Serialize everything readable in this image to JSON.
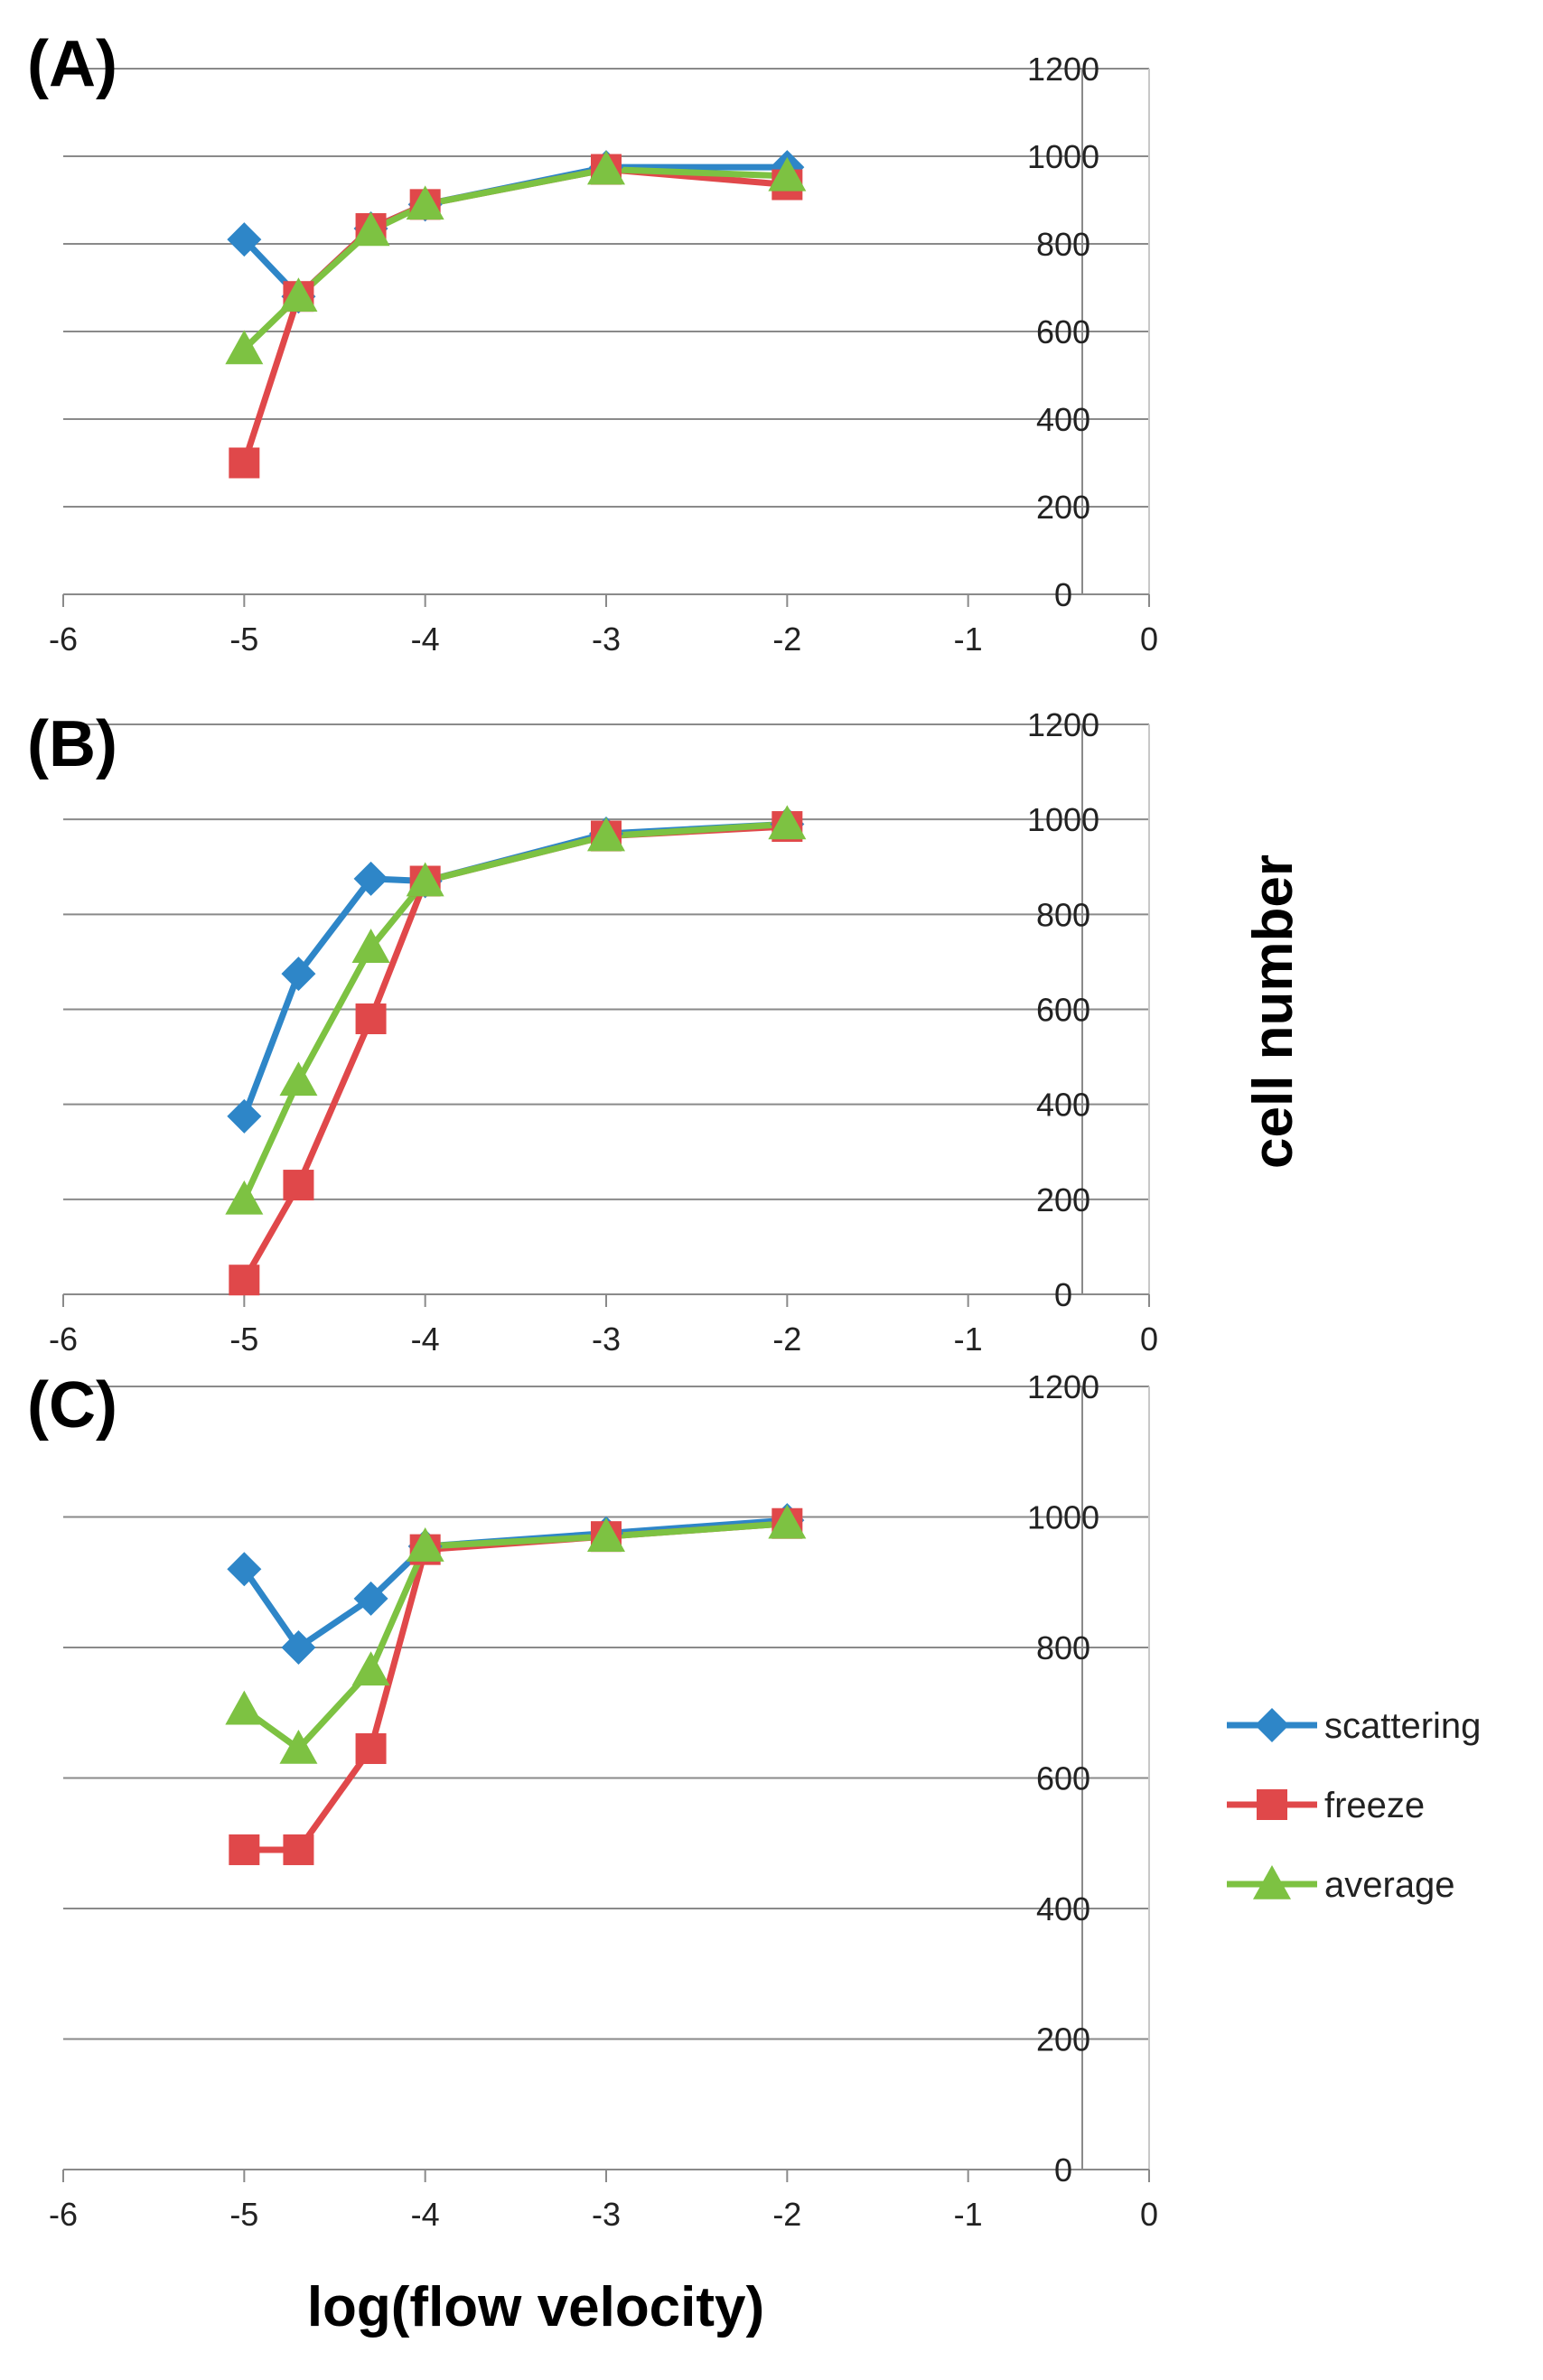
{
  "figure": {
    "ylabel": "cell number",
    "xlabel": "log(flow velocity)"
  },
  "legend": [
    {
      "name": "scattering",
      "color": "#2e86c8",
      "marker": "diamond"
    },
    {
      "name": "freeze",
      "color": "#e0484a",
      "marker": "square"
    },
    {
      "name": "average",
      "color": "#7dc242",
      "marker": "triangle"
    }
  ],
  "chart_data": [
    {
      "type": "line",
      "title": "(A)",
      "xlim": [
        -6,
        0
      ],
      "ylim": [
        0,
        1200
      ],
      "xticks": [
        -6,
        -5,
        -4,
        -3,
        -2,
        -1,
        0
      ],
      "yticks": [
        0,
        200,
        400,
        600,
        800,
        1000,
        1200
      ],
      "series": [
        {
          "name": "scattering",
          "x": [
            -5,
            -4.7,
            -4.3,
            -4,
            -3,
            -2
          ],
          "values": [
            810,
            680,
            835,
            890,
            975,
            975
          ]
        },
        {
          "name": "freeze",
          "x": [
            -5,
            -4.7,
            -4.3,
            -4,
            -3,
            -2
          ],
          "values": [
            300,
            680,
            835,
            890,
            970,
            935
          ]
        },
        {
          "name": "average",
          "x": [
            -5,
            -4.7,
            -4.3,
            -4,
            -3,
            -2
          ],
          "values": [
            560,
            680,
            830,
            890,
            970,
            955
          ]
        }
      ]
    },
    {
      "type": "line",
      "title": "(B)",
      "xlim": [
        -6,
        0
      ],
      "ylim": [
        0,
        1200
      ],
      "xticks": [
        -6,
        -5,
        -4,
        -3,
        -2,
        -1,
        0
      ],
      "yticks": [
        0,
        200,
        400,
        600,
        800,
        1000,
        1200
      ],
      "series": [
        {
          "name": "scattering",
          "x": [
            -5,
            -4.7,
            -4.3,
            -4,
            -3,
            -2
          ],
          "values": [
            375,
            675,
            875,
            870,
            970,
            990
          ]
        },
        {
          "name": "freeze",
          "x": [
            -5,
            -4.7,
            -4.3,
            -4,
            -3,
            -2
          ],
          "values": [
            30,
            230,
            580,
            870,
            965,
            985
          ]
        },
        {
          "name": "average",
          "x": [
            -5,
            -4.7,
            -4.3,
            -4,
            -3,
            -2
          ],
          "values": [
            200,
            450,
            730,
            870,
            965,
            990
          ]
        }
      ]
    },
    {
      "type": "line",
      "title": "(C)",
      "xlim": [
        -6,
        0
      ],
      "ylim": [
        0,
        1200
      ],
      "xticks": [
        -6,
        -5,
        -4,
        -3,
        -2,
        -1,
        0
      ],
      "yticks": [
        0,
        200,
        400,
        600,
        800,
        1000,
        1200
      ],
      "series": [
        {
          "name": "scattering",
          "x": [
            -5,
            -4.7,
            -4.3,
            -4,
            -3,
            -2
          ],
          "values": [
            920,
            800,
            875,
            955,
            975,
            995
          ]
        },
        {
          "name": "freeze",
          "x": [
            -5,
            -4.7,
            -4.3,
            -4,
            -3,
            -2
          ],
          "values": [
            490,
            490,
            645,
            950,
            970,
            990
          ]
        },
        {
          "name": "average",
          "x": [
            -5,
            -4.7,
            -4.3,
            -4,
            -3,
            -2
          ],
          "values": [
            705,
            645,
            765,
            955,
            970,
            990
          ]
        }
      ]
    }
  ]
}
